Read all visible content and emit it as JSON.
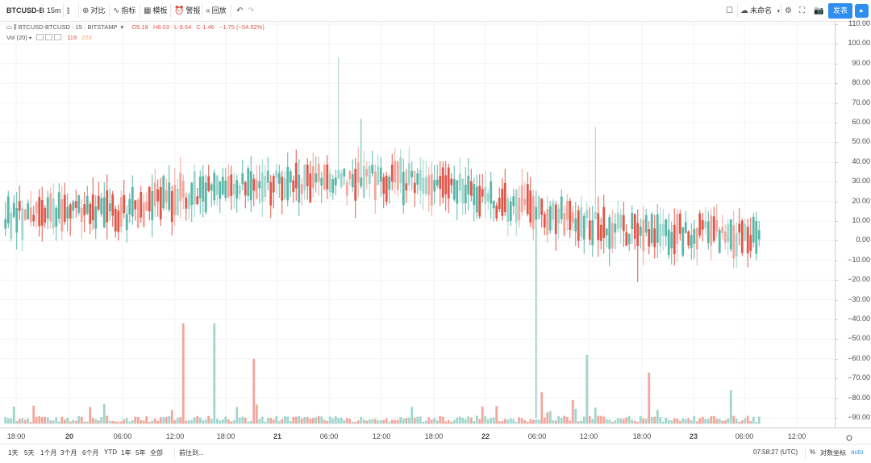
{
  "toolbar": {
    "symbol": "BTCUSD-B",
    "interval": "15m",
    "compare_label": "对比",
    "indicators_label": "指标",
    "templates_label": "模板",
    "alerts_label": "警报",
    "replay_label": "回放",
    "undo_icon": "undo-icon",
    "redo_icon": "redo-icon",
    "unnamed_label": "未命名",
    "publish_label": "发表"
  },
  "legend": {
    "title": "BTCUSD-BTCUSD · 15 · BITSTAMP",
    "open": "O5.18",
    "high": "H8.03",
    "low": "L-9.64",
    "close": "C-1.46",
    "change": "−1.75 (−54.52%)",
    "volume_label": "Vol (20)",
    "volume_value": "119",
    "volume_ma": "223"
  },
  "price_axis": {
    "ticks": [
      "110.00",
      "100.00",
      "90.00",
      "80.00",
      "70.00",
      "60.00",
      "50.00",
      "40.00",
      "30.00",
      "20.00",
      "10.00",
      "0.00",
      "−10.00",
      "−20.00",
      "−30.00",
      "−40.00",
      "−50.00",
      "−60.00",
      "−70.00",
      "−80.00",
      "−90.00"
    ]
  },
  "time_axis": {
    "ticks": [
      "18:00",
      "20",
      "06:00",
      "12:00",
      "18:00",
      "21",
      "06:00",
      "12:00",
      "18:00",
      "22",
      "06:00",
      "12:00",
      "18:00",
      "23",
      "06:00",
      "12:00"
    ]
  },
  "bottom_bar": {
    "ranges": [
      "1天",
      "5天",
      "1个月",
      "3个月",
      "6个月",
      "YTD",
      "1年",
      "5年",
      "全部"
    ],
    "goto_label": "前往到...",
    "clock": "07:58:27 (UTC)",
    "percent_label": "%",
    "log_label": "对数坐标",
    "auto_label": "auto"
  },
  "colors": {
    "up": "#5bb6a8",
    "down": "#e0574a",
    "up_vol": "#9fd6cd",
    "down_vol": "#f2a69c",
    "grid": "#f0f3f5",
    "accent": "#2e8ef0"
  },
  "chart_data": {
    "type": "candlestick",
    "symbol": "BTCUSD-BTCUSD",
    "interval": "15",
    "exchange": "BITSTAMP",
    "price_range": [
      -95,
      112
    ],
    "spread_profile": [
      {
        "t": 0,
        "mid": 12
      },
      {
        "t": 0.08,
        "mid": 16
      },
      {
        "t": 0.16,
        "mid": 14
      },
      {
        "t": 0.24,
        "mid": 24
      },
      {
        "t": 0.32,
        "mid": 28
      },
      {
        "t": 0.4,
        "mid": 30
      },
      {
        "t": 0.48,
        "mid": 32
      },
      {
        "t": 0.56,
        "mid": 30
      },
      {
        "t": 0.64,
        "mid": 20
      },
      {
        "t": 0.72,
        "mid": 14
      },
      {
        "t": 0.8,
        "mid": 6
      },
      {
        "t": 0.88,
        "mid": 4
      },
      {
        "t": 1,
        "mid": 2
      }
    ],
    "notable_wicks": [
      {
        "t": 0.44,
        "high": 93
      },
      {
        "t": 0.47,
        "high": 62
      },
      {
        "t": 0.7,
        "low": -90
      },
      {
        "t": 0.78,
        "high": 58
      },
      {
        "t": 0.835,
        "low": -21
      }
    ],
    "volume_spikes": [
      {
        "t": 0.235,
        "level": -42
      },
      {
        "t": 0.275,
        "level": -42
      },
      {
        "t": 0.33,
        "level": -60
      },
      {
        "t": 0.71,
        "level": -77
      },
      {
        "t": 0.77,
        "level": -58
      },
      {
        "t": 0.85,
        "level": -67
      },
      {
        "t": 0.96,
        "level": -76
      }
    ]
  }
}
